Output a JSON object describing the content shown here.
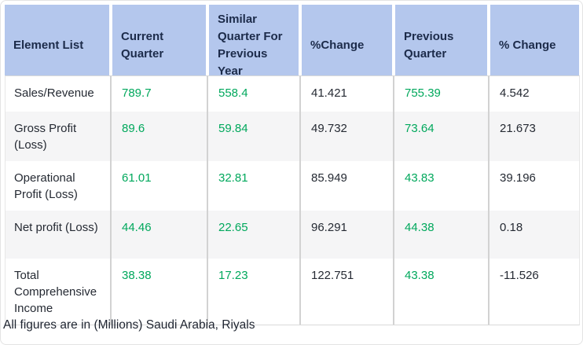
{
  "table": {
    "columns": [
      {
        "label": "Element List"
      },
      {
        "label": "Current Quarter"
      },
      {
        "label": "Similar Quarter For Previous Year"
      },
      {
        "label": "%Change"
      },
      {
        "label": "Previous Quarter"
      },
      {
        "label": "% Change"
      }
    ],
    "rows": [
      {
        "element": "Sales/Revenue",
        "current_quarter": "789.7",
        "similar_quarter_previous_year": "558.4",
        "pct_change_vs_similar": "41.421",
        "previous_quarter": "755.39",
        "pct_change_vs_previous": "4.542"
      },
      {
        "element": "Gross Profit (Loss)",
        "current_quarter": "89.6",
        "similar_quarter_previous_year": "59.84",
        "pct_change_vs_similar": "49.732",
        "previous_quarter": "73.64",
        "pct_change_vs_previous": "21.673"
      },
      {
        "element": "Operational Profit (Loss)",
        "current_quarter": "61.01",
        "similar_quarter_previous_year": "32.81",
        "pct_change_vs_similar": "85.949",
        "previous_quarter": "43.83",
        "pct_change_vs_previous": "39.196"
      },
      {
        "element": "Net profit (Loss)",
        "current_quarter": "44.46",
        "similar_quarter_previous_year": "22.65",
        "pct_change_vs_similar": "96.291",
        "previous_quarter": "44.38",
        "pct_change_vs_previous": "0.18"
      },
      {
        "element": "Total Comprehensive Income",
        "current_quarter": "38.38",
        "similar_quarter_previous_year": "17.23",
        "pct_change_vs_similar": "122.751",
        "previous_quarter": "43.38",
        "pct_change_vs_previous": "-11.526"
      }
    ],
    "footnote": "All figures are in (Millions) Saudi Arabia, Riyals"
  },
  "chart_data": {
    "type": "table",
    "title": "Quarterly financial results",
    "categories": [
      "Sales/Revenue",
      "Gross Profit (Loss)",
      "Operational Profit (Loss)",
      "Net profit (Loss)",
      "Total Comprehensive Income"
    ],
    "series": [
      {
        "name": "Current Quarter",
        "values": [
          789.7,
          89.6,
          61.01,
          44.46,
          38.38
        ]
      },
      {
        "name": "Similar Quarter For Previous Year",
        "values": [
          558.4,
          59.84,
          32.81,
          22.65,
          17.23
        ]
      },
      {
        "name": "%Change",
        "values": [
          41.421,
          49.732,
          85.949,
          96.291,
          122.751
        ]
      },
      {
        "name": "Previous Quarter",
        "values": [
          755.39,
          73.64,
          43.83,
          44.38,
          43.38
        ]
      },
      {
        "name": "% Change",
        "values": [
          4.542,
          21.673,
          39.196,
          0.18,
          -11.526
        ]
      }
    ]
  },
  "colors": {
    "header_bg": "#b4c7ed",
    "header_text": "#1c2b4a",
    "value_green": "#00a85c",
    "body_text": "#252a33",
    "stripe": "#f5f5f6",
    "separator": "#d2d2d2"
  }
}
